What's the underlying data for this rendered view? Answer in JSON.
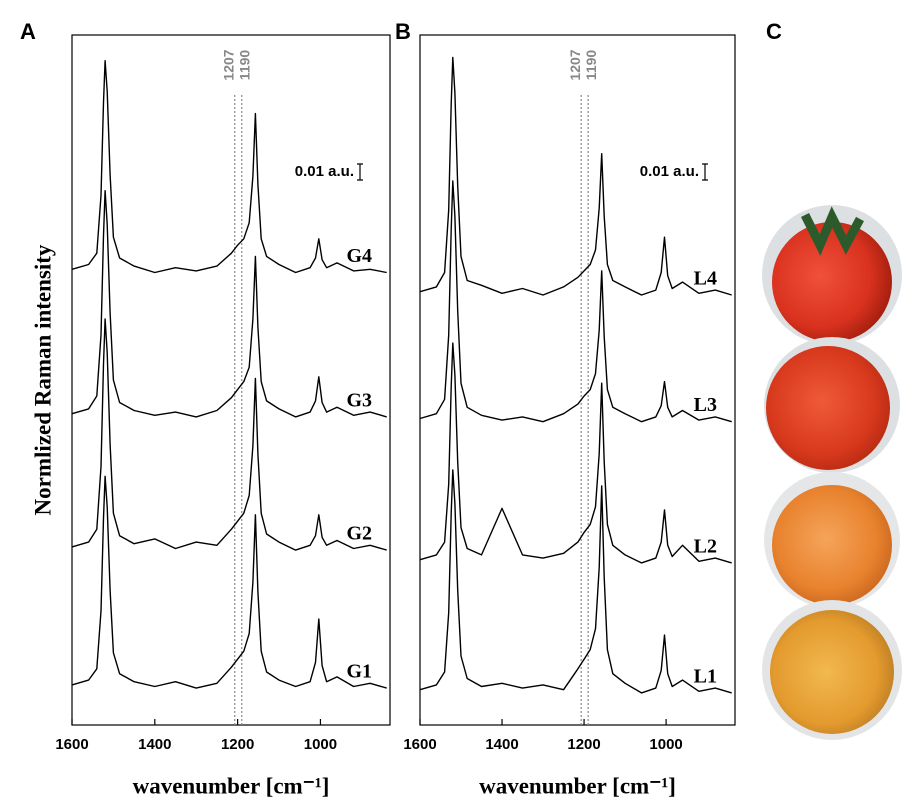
{
  "chart_data": [
    {
      "type": "line",
      "panel_label": "A",
      "ylabel": "Normlized Raman intensity",
      "xlabel": "wavenumber [cm⁻¹]",
      "xlim": [
        1600,
        832
      ],
      "xticks": [
        1600,
        1400,
        1200,
        1000
      ],
      "ylim": [
        0,
        0.43
      ],
      "reference_lines": [
        1207,
        1190
      ],
      "scale_bar": {
        "value": 0.01,
        "label": "0.01 a.u."
      },
      "x": [
        1600,
        1560,
        1540,
        1530,
        1524,
        1520,
        1515,
        1508,
        1500,
        1485,
        1450,
        1400,
        1350,
        1300,
        1250,
        1215,
        1200,
        1185,
        1172,
        1163,
        1157,
        1151,
        1143,
        1130,
        1100,
        1060,
        1025,
        1012,
        1004,
        996,
        985,
        960,
        920,
        880,
        840
      ],
      "series": [
        {
          "name": "G4",
          "color": "#000000",
          "values": [
            0.284,
            0.287,
            0.294,
            0.33,
            0.388,
            0.414,
            0.395,
            0.343,
            0.304,
            0.291,
            0.286,
            0.282,
            0.285,
            0.283,
            0.286,
            0.294,
            0.299,
            0.303,
            0.313,
            0.342,
            0.381,
            0.337,
            0.303,
            0.292,
            0.287,
            0.282,
            0.285,
            0.291,
            0.303,
            0.29,
            0.285,
            0.288,
            0.283,
            0.284,
            0.282
          ]
        },
        {
          "name": "G3",
          "color": "#000000",
          "values": [
            0.194,
            0.197,
            0.205,
            0.243,
            0.305,
            0.333,
            0.312,
            0.257,
            0.215,
            0.201,
            0.196,
            0.193,
            0.195,
            0.192,
            0.196,
            0.204,
            0.209,
            0.214,
            0.223,
            0.253,
            0.292,
            0.248,
            0.214,
            0.202,
            0.197,
            0.192,
            0.195,
            0.202,
            0.217,
            0.201,
            0.195,
            0.198,
            0.193,
            0.195,
            0.192
          ]
        },
        {
          "name": "G2",
          "color": "#000000",
          "values": [
            0.111,
            0.114,
            0.122,
            0.161,
            0.225,
            0.253,
            0.232,
            0.175,
            0.132,
            0.118,
            0.113,
            0.116,
            0.11,
            0.114,
            0.112,
            0.122,
            0.127,
            0.132,
            0.143,
            0.174,
            0.216,
            0.169,
            0.132,
            0.119,
            0.114,
            0.109,
            0.112,
            0.118,
            0.131,
            0.117,
            0.112,
            0.115,
            0.11,
            0.112,
            0.109
          ]
        },
        {
          "name": "G1",
          "color": "#000000",
          "values": [
            0.025,
            0.028,
            0.035,
            0.071,
            0.129,
            0.155,
            0.136,
            0.084,
            0.045,
            0.032,
            0.027,
            0.024,
            0.027,
            0.023,
            0.026,
            0.036,
            0.041,
            0.046,
            0.057,
            0.089,
            0.131,
            0.083,
            0.046,
            0.033,
            0.028,
            0.024,
            0.027,
            0.039,
            0.066,
            0.037,
            0.027,
            0.03,
            0.024,
            0.026,
            0.023
          ]
        }
      ]
    },
    {
      "type": "line",
      "panel_label": "B",
      "xlabel": "wavenumber [cm⁻¹]",
      "xlim": [
        1600,
        832
      ],
      "xticks": [
        1600,
        1400,
        1200,
        1000
      ],
      "ylim": [
        0,
        0.43
      ],
      "reference_lines": [
        1207,
        1190
      ],
      "scale_bar": {
        "value": 0.01,
        "label": "0.01 a.u."
      },
      "x": [
        1600,
        1560,
        1540,
        1530,
        1524,
        1520,
        1515,
        1508,
        1500,
        1485,
        1450,
        1400,
        1350,
        1300,
        1250,
        1215,
        1200,
        1185,
        1172,
        1163,
        1157,
        1151,
        1143,
        1130,
        1100,
        1060,
        1025,
        1012,
        1004,
        996,
        985,
        960,
        920,
        880,
        840
      ],
      "series": [
        {
          "name": "L4",
          "color": "#000000",
          "values": [
            0.27,
            0.273,
            0.282,
            0.321,
            0.387,
            0.416,
            0.394,
            0.336,
            0.292,
            0.277,
            0.274,
            0.269,
            0.272,
            0.268,
            0.273,
            0.279,
            0.283,
            0.287,
            0.296,
            0.322,
            0.356,
            0.317,
            0.287,
            0.277,
            0.273,
            0.268,
            0.271,
            0.282,
            0.304,
            0.28,
            0.272,
            0.276,
            0.269,
            0.271,
            0.268
          ]
        },
        {
          "name": "L3",
          "color": "#000000",
          "values": [
            0.191,
            0.194,
            0.203,
            0.243,
            0.309,
            0.339,
            0.317,
            0.258,
            0.213,
            0.198,
            0.193,
            0.19,
            0.192,
            0.189,
            0.194,
            0.2,
            0.205,
            0.209,
            0.219,
            0.246,
            0.283,
            0.242,
            0.209,
            0.198,
            0.194,
            0.189,
            0.192,
            0.199,
            0.214,
            0.198,
            0.192,
            0.196,
            0.19,
            0.192,
            0.189
          ]
        },
        {
          "name": "L2",
          "color": "#000000",
          "values": [
            0.103,
            0.106,
            0.114,
            0.15,
            0.211,
            0.238,
            0.218,
            0.164,
            0.123,
            0.11,
            0.106,
            0.135,
            0.106,
            0.104,
            0.107,
            0.114,
            0.12,
            0.125,
            0.136,
            0.169,
            0.213,
            0.164,
            0.125,
            0.112,
            0.106,
            0.101,
            0.104,
            0.114,
            0.134,
            0.112,
            0.105,
            0.112,
            0.102,
            0.104,
            0.101
          ]
        },
        {
          "name": "L1",
          "color": "#000000",
          "values": [
            0.022,
            0.025,
            0.033,
            0.07,
            0.132,
            0.159,
            0.138,
            0.084,
            0.043,
            0.029,
            0.024,
            0.026,
            0.023,
            0.025,
            0.022,
            0.035,
            0.041,
            0.047,
            0.06,
            0.098,
            0.149,
            0.092,
            0.047,
            0.032,
            0.026,
            0.02,
            0.023,
            0.034,
            0.056,
            0.032,
            0.024,
            0.028,
            0.021,
            0.023,
            0.02
          ]
        }
      ]
    }
  ],
  "panel_c": {
    "label": "C"
  }
}
